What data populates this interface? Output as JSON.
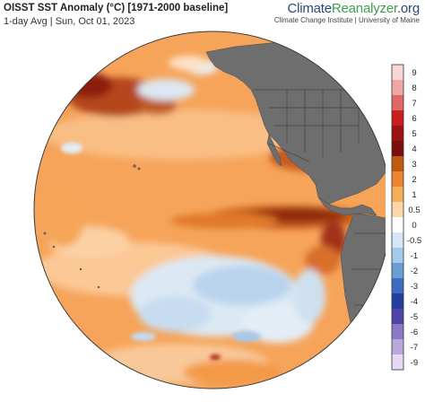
{
  "header": {
    "title": "OISST SST Anomaly (°C) [1971-2000 baseline]",
    "subtitle": "1-day Avg | Sun, Oct 01, 2023"
  },
  "brand": {
    "name_part1": "Climate",
    "name_part2": "Reanalyzer",
    "name_part3": ".org",
    "tagline": "Climate Change Institute | University of Maine"
  },
  "map": {
    "projection": "orthographic",
    "region": "Pacific Ocean",
    "land_color": "#6e6e6e",
    "ocean_base_color": "#f6a45a"
  },
  "legend": {
    "ticks": [
      "9",
      "8",
      "7",
      "6",
      "5",
      "4",
      "3",
      "2",
      "1",
      "0.5",
      "0",
      "-0.5",
      "-1",
      "-2",
      "-3",
      "-4",
      "-5",
      "-6",
      "-7",
      "-9"
    ],
    "colors": [
      "#f8d6d6",
      "#f1a6a6",
      "#e26666",
      "#c81e1e",
      "#9c1212",
      "#7a0e0e",
      "#c05a10",
      "#ec8430",
      "#f5ad5a",
      "#fbd6a8",
      "#ffffff",
      "#d6e6f5",
      "#a3c9ec",
      "#6a9fd6",
      "#3e6cc0",
      "#233e9e",
      "#4f43a6",
      "#8a79c6",
      "#b8a8dc",
      "#e6d8f2"
    ]
  }
}
